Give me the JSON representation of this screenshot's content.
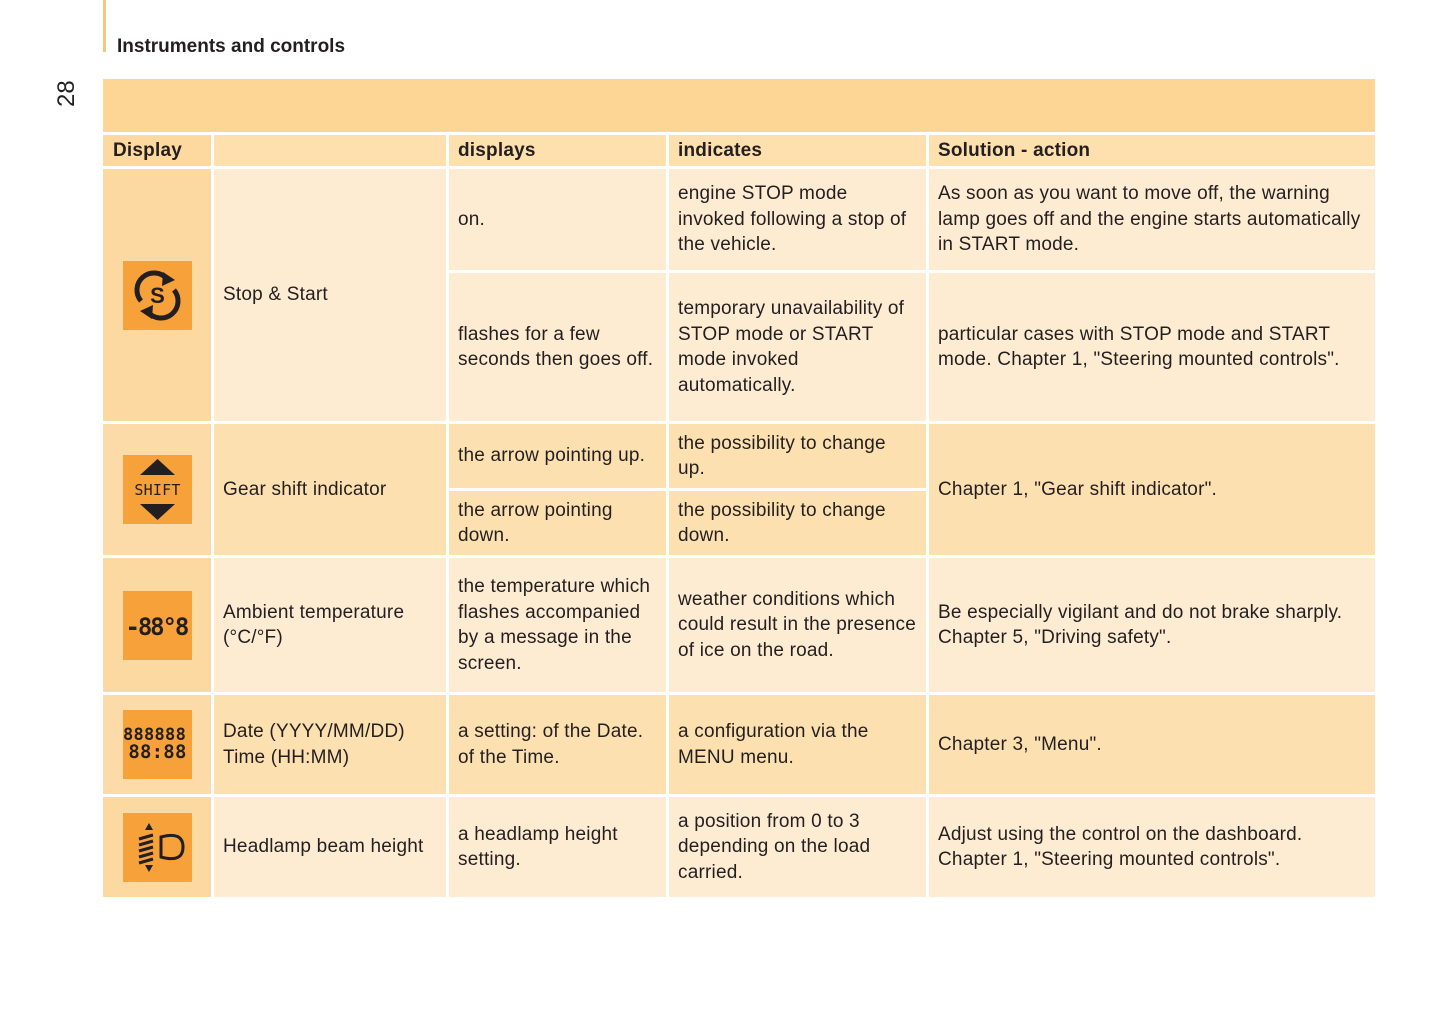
{
  "header": {
    "section_title": "Instruments and controls",
    "page_number": "28"
  },
  "table": {
    "columns": [
      "Display",
      "",
      "displays",
      "indicates",
      "Solution - action"
    ],
    "rows": [
      {
        "icon": "stop-start-icon",
        "name": "Stop & Start",
        "sub": [
          {
            "displays": "on.",
            "indicates": "engine STOP mode invoked following a stop of the vehicle.",
            "solution": "As soon as you want to move off, the warning lamp goes off and the engine starts automatically in START mode."
          },
          {
            "displays": "flashes for a few seconds then goes off.",
            "indicates": "temporary unavailability of STOP mode or START mode invoked automatically.",
            "solution": "particular cases with STOP mode and START mode. Chapter 1, \"Steering mounted controls\"."
          }
        ]
      },
      {
        "icon": "gear-shift-icon",
        "icon_text": "SHIFT",
        "name": "Gear shift indicator",
        "solution": "Chapter 1, \"Gear shift indicator\".",
        "sub": [
          {
            "displays": "the arrow pointing up.",
            "indicates": "the possibility to change up."
          },
          {
            "displays": "the arrow pointing down.",
            "indicates": "the possibility to change down."
          }
        ]
      },
      {
        "icon": "ambient-temperature-icon",
        "icon_text": "-88°8",
        "name": "Ambient temperature (°C/°F)",
        "displays": "the temperature which flashes accompanied by a message in the screen.",
        "indicates": "weather conditions which could result in the presence of ice on the road.",
        "solution": "Be especially vigilant and do not brake sharply. Chapter 5, \"Driving safety\"."
      },
      {
        "icon": "date-time-icon",
        "icon_text": "888888",
        "icon_text2": "88:88",
        "name": "Date (YYYY/MM/DD) Time (HH:MM)",
        "displays": "a setting: of the Date. of the Time.",
        "indicates": "a configuration via the MENU menu.",
        "solution": "Chapter 3, \"Menu\"."
      },
      {
        "icon": "headlamp-beam-height-icon",
        "name": "Headlamp beam height",
        "displays": "a headlamp height setting.",
        "indicates": "a position from 0 to 3 depending on the load carried.",
        "solution": "Adjust using the control on the dashboard. Chapter 1, \"Steering mounted controls\"."
      }
    ]
  },
  "colors": {
    "icon_bg": "#f7a13b",
    "band": "#fdd595",
    "header_row": "#fde0ae",
    "row_light": "#fdebd2",
    "row_dark": "#fde0b0"
  }
}
